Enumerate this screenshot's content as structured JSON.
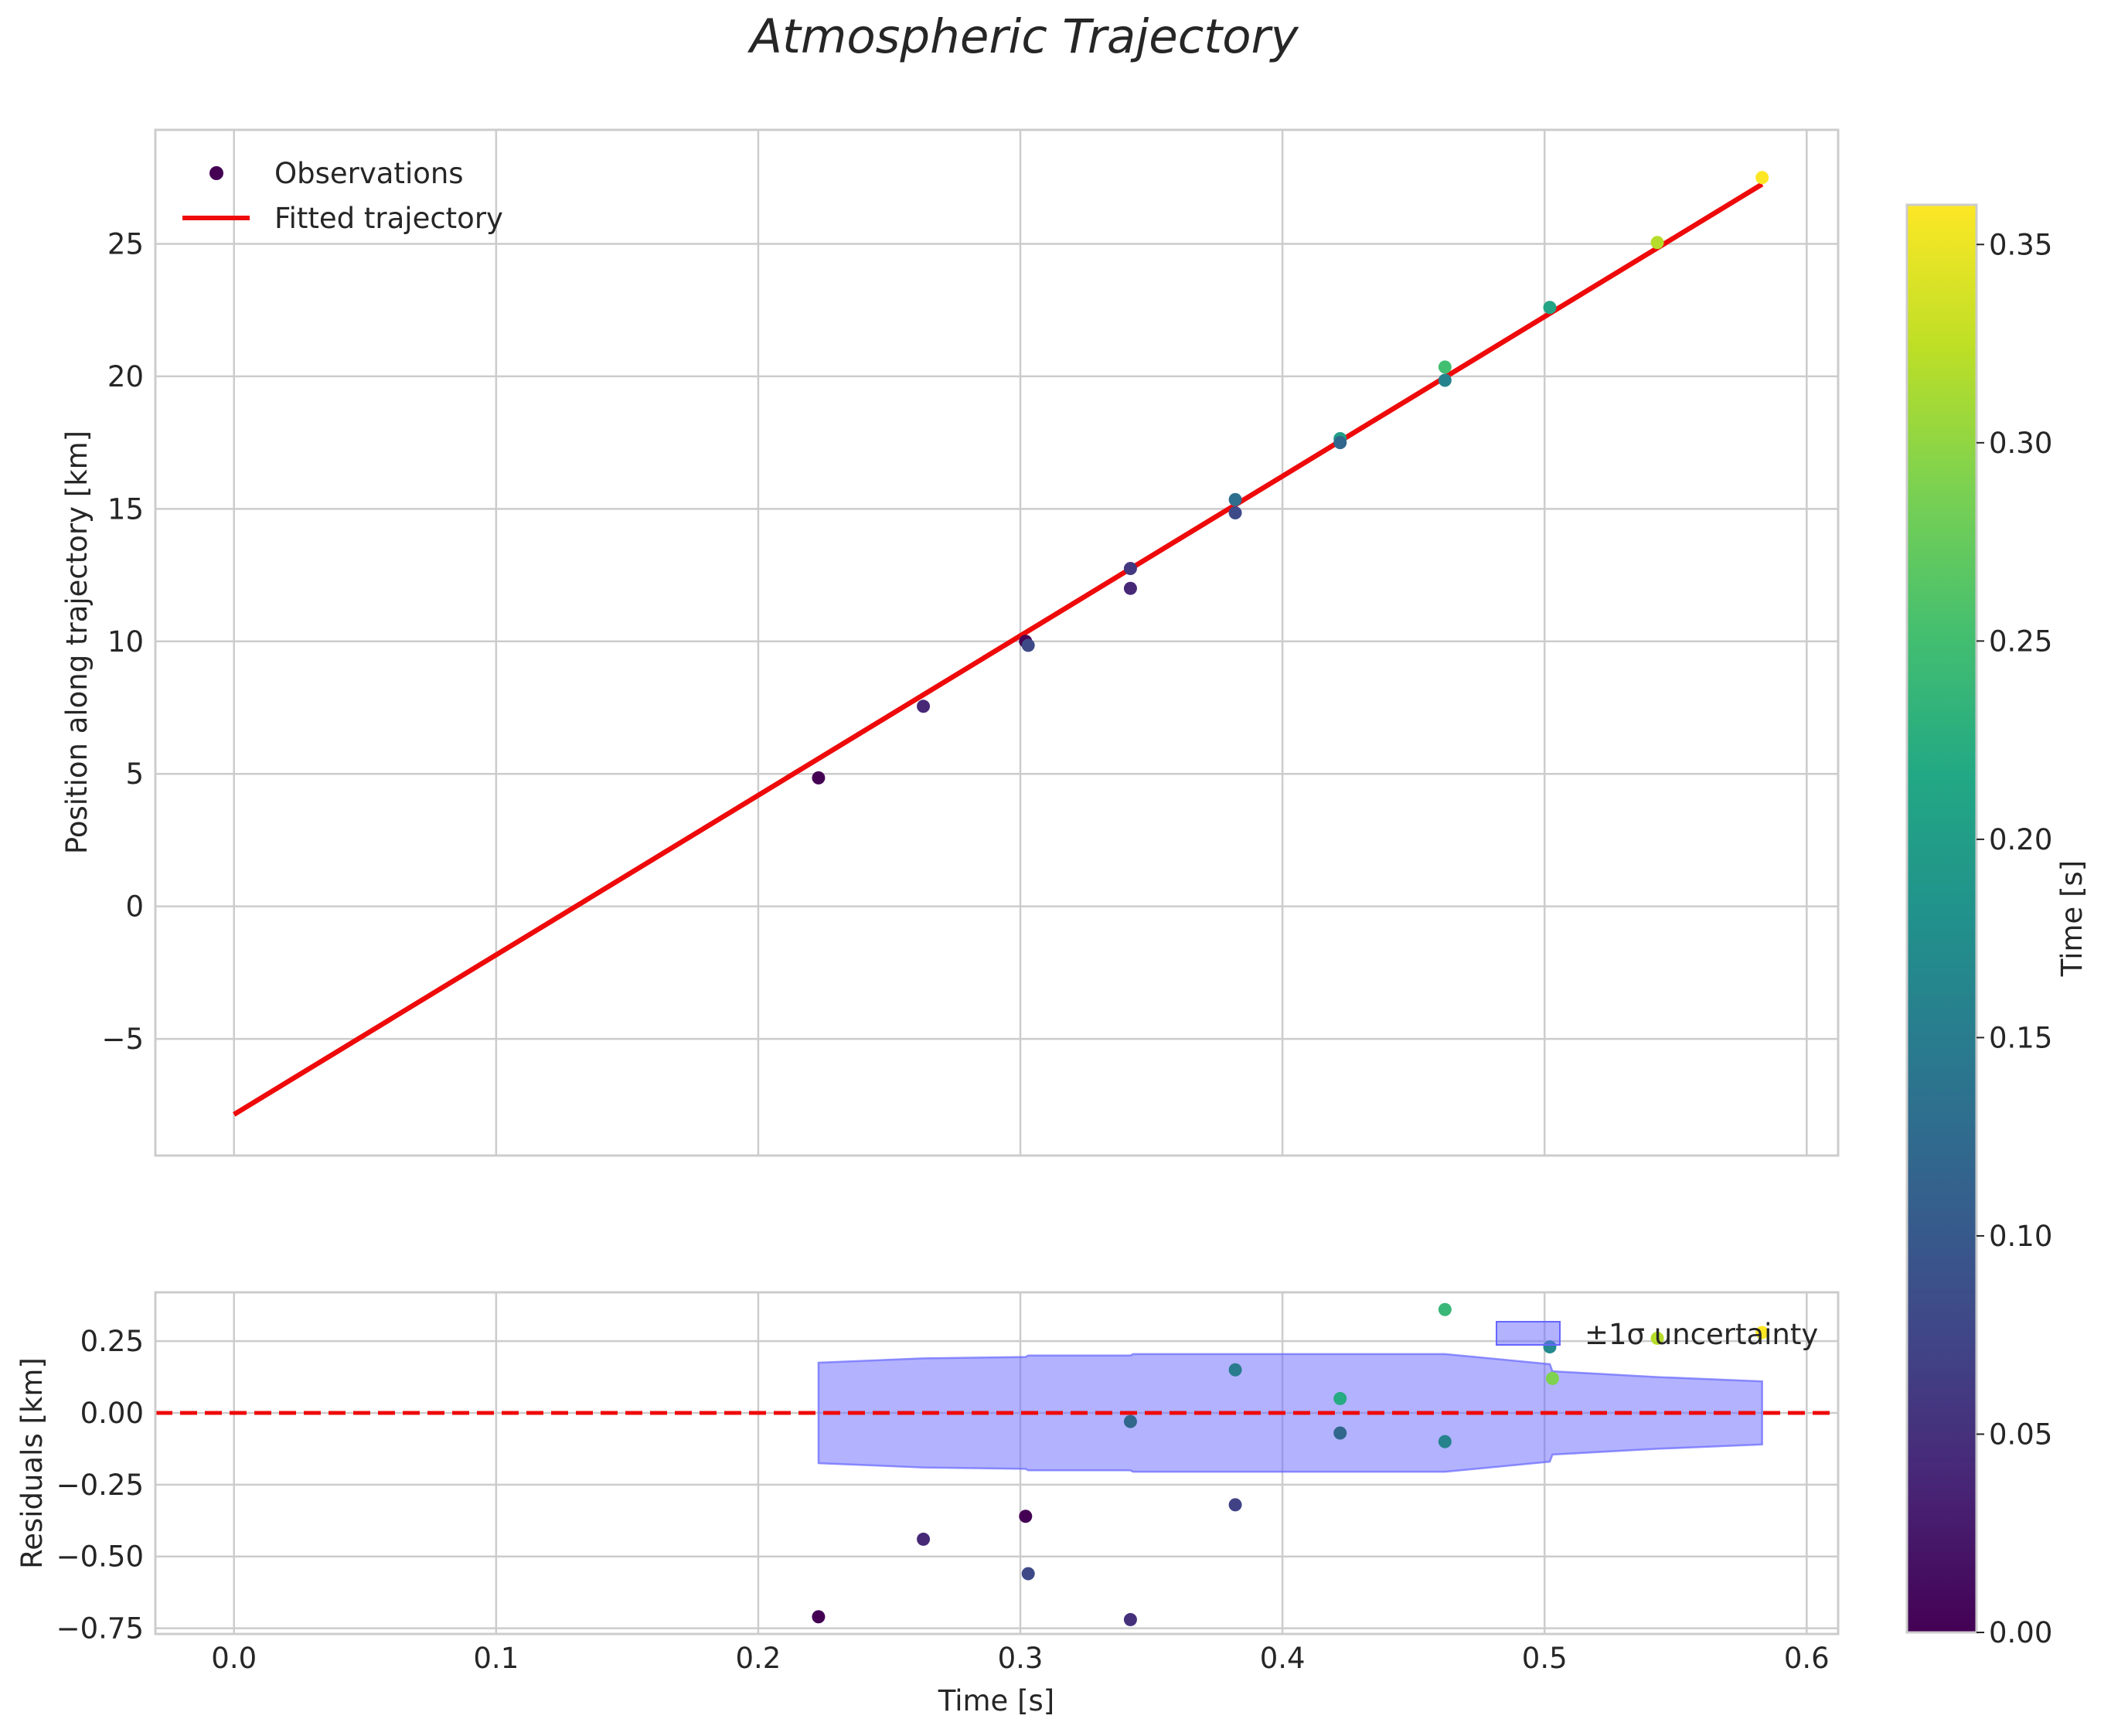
{
  "chart_data": [
    {
      "type": "scatter",
      "panel": "top",
      "title": "Atmospheric Trajectory",
      "xlabel": "",
      "ylabel": "Position along trajectory [km]",
      "xlim": [
        -0.03,
        0.612
      ],
      "ylim": [
        -9.4,
        29.3
      ],
      "xticks": [
        0.0,
        0.1,
        0.2,
        0.3,
        0.4,
        0.5,
        0.6
      ],
      "yticks": [
        -5,
        0,
        5,
        10,
        15,
        20,
        25
      ],
      "ytick_labels": [
        "−5",
        "0",
        "5",
        "10",
        "15",
        "20",
        "25"
      ],
      "grid": true,
      "legend": {
        "position": "upper left",
        "entries": [
          "Observations",
          "Fitted trajectory"
        ]
      },
      "series": [
        {
          "name": "Observations",
          "kind": "scatter",
          "color_by": "Time [s]",
          "points": [
            {
              "x": 0.223,
              "y": 4.85,
              "c": 0.0
            },
            {
              "x": 0.263,
              "y": 7.55,
              "c": 0.04
            },
            {
              "x": 0.302,
              "y": 10.0,
              "c": 0.0
            },
            {
              "x": 0.303,
              "y": 9.85,
              "c": 0.08
            },
            {
              "x": 0.342,
              "y": 12.75,
              "c": 0.06
            },
            {
              "x": 0.342,
              "y": 12.0,
              "c": 0.04
            },
            {
              "x": 0.382,
              "y": 15.35,
              "c": 0.13
            },
            {
              "x": 0.382,
              "y": 14.85,
              "c": 0.08
            },
            {
              "x": 0.422,
              "y": 17.65,
              "c": 0.2
            },
            {
              "x": 0.422,
              "y": 17.5,
              "c": 0.12
            },
            {
              "x": 0.462,
              "y": 20.35,
              "c": 0.25
            },
            {
              "x": 0.462,
              "y": 19.85,
              "c": 0.16
            },
            {
              "x": 0.502,
              "y": 22.6,
              "c": 0.21
            },
            {
              "x": 0.543,
              "y": 25.05,
              "c": 0.32
            },
            {
              "x": 0.583,
              "y": 27.5,
              "c": 0.36
            }
          ]
        },
        {
          "name": "Fitted trajectory",
          "kind": "line",
          "color": "#ee0a0a",
          "points": [
            {
              "x": 0.0,
              "y": -7.85
            },
            {
              "x": 0.583,
              "y": 27.25
            }
          ]
        }
      ]
    },
    {
      "type": "scatter",
      "panel": "bottom",
      "title": "",
      "xlabel": "Time [s]",
      "ylabel": "Residuals [km]",
      "xlim": [
        -0.03,
        0.612
      ],
      "ylim": [
        -0.77,
        0.42
      ],
      "xticks": [
        0.0,
        0.1,
        0.2,
        0.3,
        0.4,
        0.5,
        0.6
      ],
      "xtick_labels": [
        "0.0",
        "0.1",
        "0.2",
        "0.3",
        "0.4",
        "0.5",
        "0.6"
      ],
      "yticks": [
        -0.75,
        -0.5,
        -0.25,
        0.0,
        0.25
      ],
      "ytick_labels": [
        "−0.75",
        "−0.50",
        "−0.25",
        "0.00",
        "0.25"
      ],
      "grid": true,
      "reference_line": {
        "y": 0.0,
        "style": "dashed",
        "color": "#ee0a0a"
      },
      "legend": {
        "position": "upper right",
        "entries": [
          "±1σ uncertainty"
        ]
      },
      "uncertainty_band": {
        "name": "±1σ uncertainty",
        "color": "#6666ff",
        "points": [
          {
            "x": 0.223,
            "upper": 0.175,
            "lower": -0.175
          },
          {
            "x": 0.263,
            "upper": 0.19,
            "lower": -0.19
          },
          {
            "x": 0.302,
            "upper": 0.195,
            "lower": -0.195
          },
          {
            "x": 0.303,
            "upper": 0.2,
            "lower": -0.2
          },
          {
            "x": 0.342,
            "upper": 0.2,
            "lower": -0.2
          },
          {
            "x": 0.343,
            "upper": 0.205,
            "lower": -0.205
          },
          {
            "x": 0.462,
            "upper": 0.205,
            "lower": -0.205
          },
          {
            "x": 0.502,
            "upper": 0.17,
            "lower": -0.17
          },
          {
            "x": 0.503,
            "upper": 0.145,
            "lower": -0.145
          },
          {
            "x": 0.543,
            "upper": 0.125,
            "lower": -0.125
          },
          {
            "x": 0.583,
            "upper": 0.11,
            "lower": -0.11
          }
        ]
      },
      "series": [
        {
          "name": "Residuals",
          "kind": "scatter",
          "color_by": "Time [s]",
          "points": [
            {
              "x": 0.223,
              "y": -0.71,
              "c": 0.0
            },
            {
              "x": 0.263,
              "y": -0.44,
              "c": 0.04
            },
            {
              "x": 0.302,
              "y": -0.36,
              "c": 0.0
            },
            {
              "x": 0.303,
              "y": -0.56,
              "c": 0.08
            },
            {
              "x": 0.342,
              "y": -0.03,
              "c": 0.12
            },
            {
              "x": 0.342,
              "y": -0.72,
              "c": 0.05
            },
            {
              "x": 0.382,
              "y": 0.15,
              "c": 0.15
            },
            {
              "x": 0.382,
              "y": -0.32,
              "c": 0.07
            },
            {
              "x": 0.422,
              "y": 0.05,
              "c": 0.22
            },
            {
              "x": 0.422,
              "y": -0.07,
              "c": 0.12
            },
            {
              "x": 0.462,
              "y": 0.36,
              "c": 0.24
            },
            {
              "x": 0.462,
              "y": -0.1,
              "c": 0.16
            },
            {
              "x": 0.502,
              "y": 0.23,
              "c": 0.17
            },
            {
              "x": 0.503,
              "y": 0.12,
              "c": 0.29
            },
            {
              "x": 0.543,
              "y": 0.26,
              "c": 0.32
            },
            {
              "x": 0.583,
              "y": 0.28,
              "c": 0.36
            }
          ]
        }
      ]
    },
    {
      "type": "colorbar",
      "label": "Time [s]",
      "colormap": "viridis",
      "vmin": 0.0,
      "vmax": 0.36,
      "ticks": [
        0.0,
        0.05,
        0.1,
        0.15,
        0.2,
        0.25,
        0.3,
        0.35
      ],
      "tick_labels": [
        "0.00",
        "0.05",
        "0.10",
        "0.15",
        "0.20",
        "0.25",
        "0.30",
        "0.35"
      ]
    }
  ]
}
